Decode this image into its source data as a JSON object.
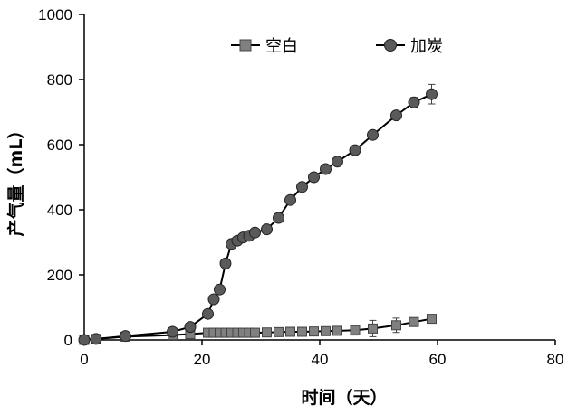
{
  "chart_data": {
    "type": "line",
    "xlabel": "时间（天）",
    "ylabel": "产气量（mL）",
    "xlim": [
      0,
      80
    ],
    "ylim": [
      0,
      1000
    ],
    "xticks": [
      0,
      20,
      40,
      60,
      80
    ],
    "yticks": [
      0,
      200,
      400,
      600,
      800,
      1000
    ],
    "grid": false,
    "legend_position": "top",
    "series": [
      {
        "name": "空白",
        "marker": "square",
        "color": "#808080",
        "points": [
          {
            "x": 0,
            "y": 0
          },
          {
            "x": 2,
            "y": 3
          },
          {
            "x": 7,
            "y": 10
          },
          {
            "x": 15,
            "y": 15
          },
          {
            "x": 18,
            "y": 18
          },
          {
            "x": 21,
            "y": 22
          },
          {
            "x": 22,
            "y": 22
          },
          {
            "x": 23,
            "y": 22
          },
          {
            "x": 24,
            "y": 22
          },
          {
            "x": 25,
            "y": 22
          },
          {
            "x": 26,
            "y": 22
          },
          {
            "x": 27,
            "y": 22
          },
          {
            "x": 28,
            "y": 22
          },
          {
            "x": 29,
            "y": 22
          },
          {
            "x": 31,
            "y": 23
          },
          {
            "x": 33,
            "y": 24
          },
          {
            "x": 35,
            "y": 25
          },
          {
            "x": 37,
            "y": 25
          },
          {
            "x": 39,
            "y": 26
          },
          {
            "x": 41,
            "y": 27
          },
          {
            "x": 43,
            "y": 28
          },
          {
            "x": 46,
            "y": 30,
            "err": 15
          },
          {
            "x": 49,
            "y": 35,
            "err": 25
          },
          {
            "x": 53,
            "y": 45,
            "err": 22
          },
          {
            "x": 56,
            "y": 55,
            "err": 12
          },
          {
            "x": 59,
            "y": 65,
            "err": 5
          }
        ]
      },
      {
        "name": "加炭",
        "marker": "circle",
        "color": "#5a5a5a",
        "points": [
          {
            "x": 0,
            "y": 0
          },
          {
            "x": 2,
            "y": 3
          },
          {
            "x": 7,
            "y": 12
          },
          {
            "x": 15,
            "y": 25
          },
          {
            "x": 18,
            "y": 40
          },
          {
            "x": 21,
            "y": 80
          },
          {
            "x": 22,
            "y": 125
          },
          {
            "x": 23,
            "y": 155
          },
          {
            "x": 24,
            "y": 235
          },
          {
            "x": 25,
            "y": 295
          },
          {
            "x": 26,
            "y": 305
          },
          {
            "x": 27,
            "y": 315
          },
          {
            "x": 28,
            "y": 320
          },
          {
            "x": 29,
            "y": 330
          },
          {
            "x": 31,
            "y": 340
          },
          {
            "x": 33,
            "y": 375
          },
          {
            "x": 35,
            "y": 430
          },
          {
            "x": 37,
            "y": 470
          },
          {
            "x": 39,
            "y": 500
          },
          {
            "x": 41,
            "y": 525
          },
          {
            "x": 43,
            "y": 548
          },
          {
            "x": 46,
            "y": 583
          },
          {
            "x": 49,
            "y": 630
          },
          {
            "x": 53,
            "y": 690
          },
          {
            "x": 56,
            "y": 730,
            "err": 15
          },
          {
            "x": 59,
            "y": 755,
            "err": 30
          }
        ]
      }
    ]
  }
}
